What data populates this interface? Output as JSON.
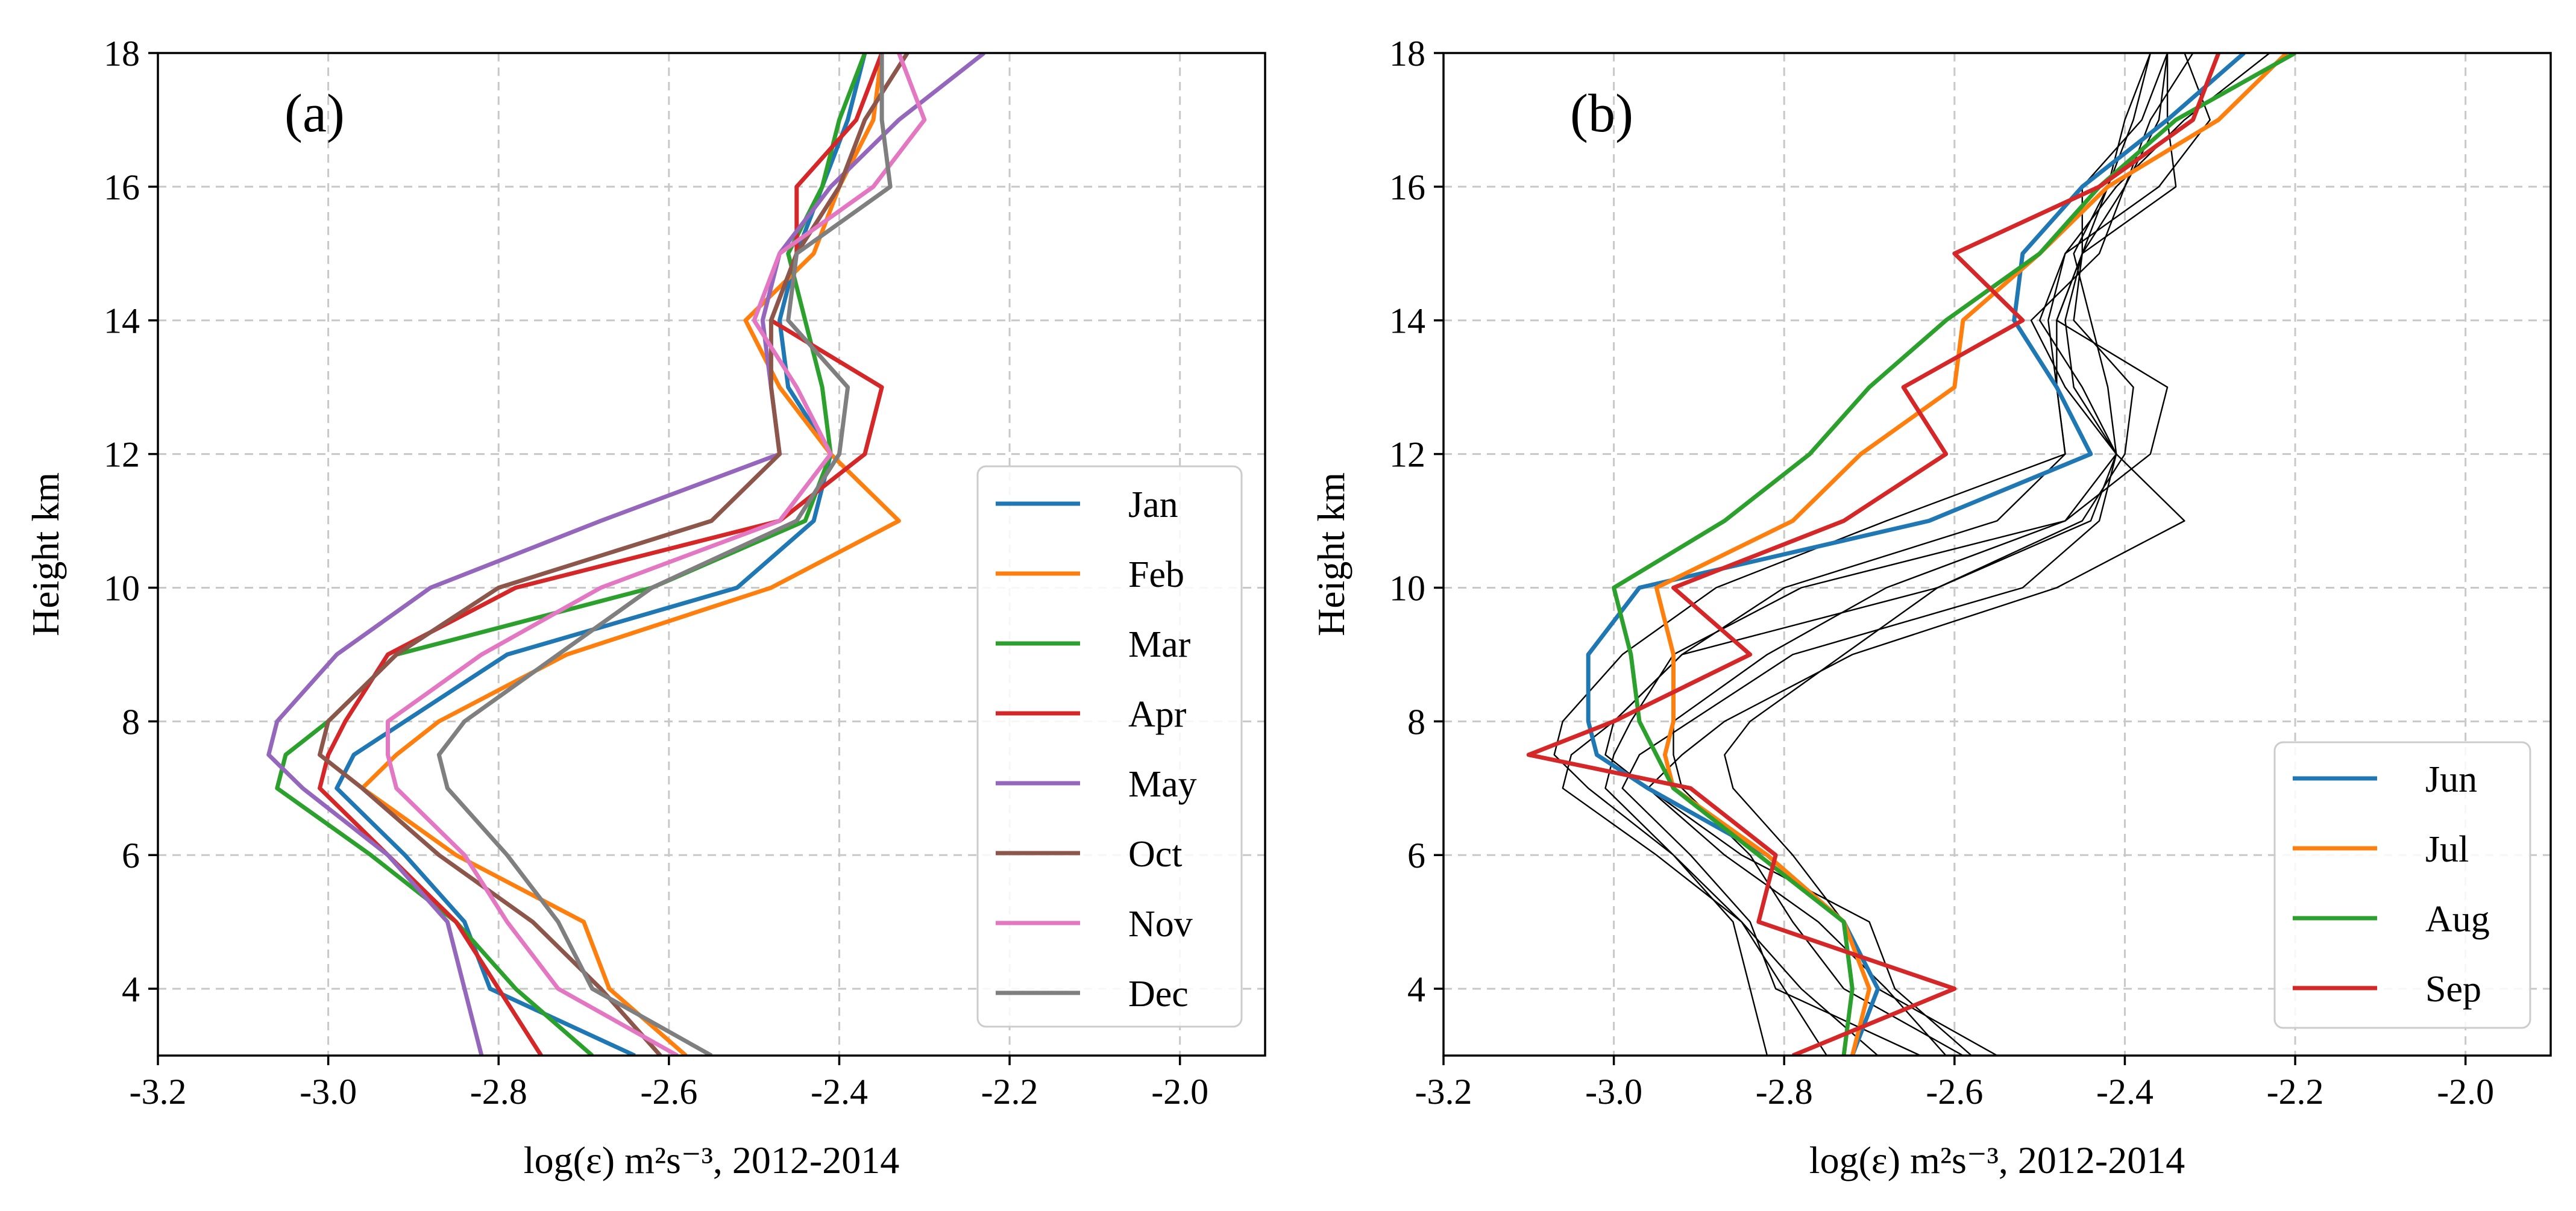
{
  "chart_data": [
    {
      "type": "line",
      "panel_label": "(a)",
      "xlabel": "log(ε) m²s⁻³, 2012-2014",
      "ylabel": "Height km",
      "xlim": [
        -3.2,
        -1.9
      ],
      "ylim": [
        3,
        18
      ],
      "xticks": [
        -3.2,
        -3.0,
        -2.8,
        -2.6,
        -2.4,
        -2.2,
        -2.0
      ],
      "xtick_labels": [
        "-3.2",
        "-3.0",
        "-2.8",
        "-2.6",
        "-2.4",
        "-2.2",
        "-2.0"
      ],
      "yticks": [
        4,
        6,
        8,
        10,
        12,
        14,
        16,
        18
      ],
      "ytick_labels": [
        "4",
        "6",
        "8",
        "10",
        "12",
        "14",
        "16",
        "18"
      ],
      "grid": true,
      "legend_position": "lower-right",
      "y": [
        3,
        4,
        5,
        6,
        7,
        7.5,
        8,
        9,
        10,
        11,
        12,
        13,
        14,
        15,
        16,
        17,
        18
      ],
      "series": [
        {
          "name": "Jan",
          "color": "#1f77b4",
          "values": [
            -2.64,
            -2.81,
            -2.84,
            -2.91,
            -2.99,
            -2.97,
            -2.91,
            -2.79,
            -2.52,
            -2.43,
            -2.41,
            -2.46,
            -2.47,
            -2.45,
            -2.42,
            -2.39,
            -2.37
          ]
        },
        {
          "name": "Feb",
          "color": "#ff7f0e",
          "values": [
            -2.58,
            -2.67,
            -2.7,
            -2.85,
            -2.96,
            -2.92,
            -2.87,
            -2.72,
            -2.48,
            -2.33,
            -2.41,
            -2.47,
            -2.51,
            -2.43,
            -2.4,
            -2.36,
            -2.35
          ]
        },
        {
          "name": "Mar",
          "color": "#2ca02c",
          "values": [
            -2.69,
            -2.78,
            -2.85,
            -2.95,
            -3.06,
            -3.05,
            -3.0,
            -2.92,
            -2.62,
            -2.44,
            -2.41,
            -2.42,
            -2.44,
            -2.46,
            -2.42,
            -2.4,
            -2.37
          ]
        },
        {
          "name": "Apr",
          "color": "#d62728",
          "values": [
            -2.75,
            -2.8,
            -2.85,
            -2.93,
            -3.01,
            -3.0,
            -2.98,
            -2.93,
            -2.78,
            -2.47,
            -2.37,
            -2.35,
            -2.48,
            -2.45,
            -2.45,
            -2.38,
            -2.35
          ]
        },
        {
          "name": "May",
          "color": "#9467bd",
          "values": [
            -2.82,
            -2.84,
            -2.86,
            -2.93,
            -3.03,
            -3.07,
            -3.06,
            -2.99,
            -2.88,
            -2.68,
            -2.47,
            -2.48,
            -2.49,
            -2.47,
            -2.41,
            -2.33,
            -2.23
          ]
        },
        {
          "name": "Oct",
          "color": "#8c564b",
          "values": [
            -2.61,
            -2.68,
            -2.76,
            -2.87,
            -2.96,
            -3.01,
            -3.0,
            -2.92,
            -2.8,
            -2.55,
            -2.47,
            -2.48,
            -2.48,
            -2.45,
            -2.4,
            -2.37,
            -2.32
          ]
        },
        {
          "name": "Nov",
          "color": "#e377c2",
          "values": [
            -2.59,
            -2.73,
            -2.79,
            -2.84,
            -2.92,
            -2.93,
            -2.93,
            -2.82,
            -2.68,
            -2.47,
            -2.41,
            -2.45,
            -2.5,
            -2.47,
            -2.36,
            -2.3,
            -2.33
          ]
        },
        {
          "name": "Dec",
          "color": "#7f7f7f",
          "values": [
            -2.55,
            -2.69,
            -2.73,
            -2.79,
            -2.86,
            -2.87,
            -2.84,
            -2.73,
            -2.62,
            -2.45,
            -2.4,
            -2.39,
            -2.46,
            -2.45,
            -2.34,
            -2.35,
            -2.35
          ]
        }
      ]
    },
    {
      "type": "line",
      "panel_label": "(b)",
      "xlabel": "log(ε) m²s⁻³, 2012-2014",
      "ylabel": "Height km",
      "xlim": [
        -3.2,
        -1.9
      ],
      "ylim": [
        3,
        18
      ],
      "xticks": [
        -3.2,
        -3.0,
        -2.8,
        -2.6,
        -2.4,
        -2.2,
        -2.0
      ],
      "xtick_labels": [
        "-3.2",
        "-3.0",
        "-2.8",
        "-2.6",
        "-2.4",
        "-2.2",
        "-2.0"
      ],
      "yticks": [
        4,
        6,
        8,
        10,
        12,
        14,
        16,
        18
      ],
      "ytick_labels": [
        "4",
        "6",
        "8",
        "10",
        "12",
        "14",
        "16",
        "18"
      ],
      "grid": true,
      "legend_position": "lower-right",
      "y": [
        3,
        4,
        5,
        6,
        7,
        7.5,
        8,
        9,
        10,
        11,
        12,
        13,
        14,
        15,
        16,
        17,
        18
      ],
      "background_series_color": "#000000",
      "series": [
        {
          "name": "Jun",
          "color": "#1f77b4",
          "values": [
            -2.72,
            -2.69,
            -2.73,
            -2.82,
            -2.96,
            -3.02,
            -3.03,
            -3.03,
            -2.97,
            -2.63,
            -2.44,
            -2.48,
            -2.53,
            -2.52,
            -2.45,
            -2.35,
            -2.26
          ]
        },
        {
          "name": "Jul",
          "color": "#ff7f0e",
          "values": [
            -2.72,
            -2.7,
            -2.73,
            -2.82,
            -2.93,
            -2.94,
            -2.93,
            -2.93,
            -2.95,
            -2.79,
            -2.71,
            -2.6,
            -2.59,
            -2.5,
            -2.42,
            -2.29,
            -2.21
          ]
        },
        {
          "name": "Aug",
          "color": "#2ca02c",
          "values": [
            -2.73,
            -2.72,
            -2.73,
            -2.83,
            -2.93,
            -2.95,
            -2.97,
            -2.98,
            -3.0,
            -2.87,
            -2.77,
            -2.7,
            -2.61,
            -2.5,
            -2.43,
            -2.34,
            -2.2
          ]
        },
        {
          "name": "Sep",
          "color": "#d62728",
          "values": [
            -2.79,
            -2.6,
            -2.83,
            -2.81,
            -2.91,
            -3.1,
            -3.0,
            -2.84,
            -2.93,
            -2.73,
            -2.61,
            -2.66,
            -2.52,
            -2.6,
            -2.43,
            -2.32,
            -2.29
          ]
        }
      ],
      "background_series": [
        [
          -2.64,
          -2.81,
          -2.84,
          -2.91,
          -2.99,
          -2.97,
          -2.91,
          -2.79,
          -2.52,
          -2.43,
          -2.41,
          -2.46,
          -2.47,
          -2.45,
          -2.42,
          -2.39,
          -2.37
        ],
        [
          -2.58,
          -2.67,
          -2.7,
          -2.85,
          -2.96,
          -2.92,
          -2.87,
          -2.72,
          -2.48,
          -2.33,
          -2.41,
          -2.47,
          -2.51,
          -2.43,
          -2.4,
          -2.36,
          -2.35
        ],
        [
          -2.69,
          -2.78,
          -2.85,
          -2.95,
          -3.06,
          -3.05,
          -3.0,
          -2.92,
          -2.62,
          -2.44,
          -2.41,
          -2.42,
          -2.44,
          -2.46,
          -2.42,
          -2.4,
          -2.37
        ],
        [
          -2.75,
          -2.8,
          -2.85,
          -2.93,
          -3.01,
          -3.0,
          -2.98,
          -2.93,
          -2.78,
          -2.47,
          -2.37,
          -2.35,
          -2.48,
          -2.45,
          -2.45,
          -2.38,
          -2.35
        ],
        [
          -2.82,
          -2.84,
          -2.86,
          -2.93,
          -3.03,
          -3.07,
          -3.06,
          -2.99,
          -2.88,
          -2.68,
          -2.47,
          -2.48,
          -2.49,
          -2.47,
          -2.41,
          -2.33,
          -2.23
        ],
        [
          -2.61,
          -2.68,
          -2.76,
          -2.87,
          -2.96,
          -3.01,
          -3.0,
          -2.92,
          -2.8,
          -2.55,
          -2.47,
          -2.48,
          -2.48,
          -2.45,
          -2.4,
          -2.37,
          -2.32
        ],
        [
          -2.59,
          -2.73,
          -2.79,
          -2.84,
          -2.92,
          -2.93,
          -2.93,
          -2.82,
          -2.68,
          -2.47,
          -2.41,
          -2.45,
          -2.5,
          -2.47,
          -2.36,
          -2.3,
          -2.33
        ],
        [
          -2.55,
          -2.69,
          -2.73,
          -2.79,
          -2.86,
          -2.87,
          -2.84,
          -2.73,
          -2.62,
          -2.45,
          -2.4,
          -2.39,
          -2.46,
          -2.45,
          -2.34,
          -2.35,
          -2.35
        ]
      ]
    }
  ]
}
